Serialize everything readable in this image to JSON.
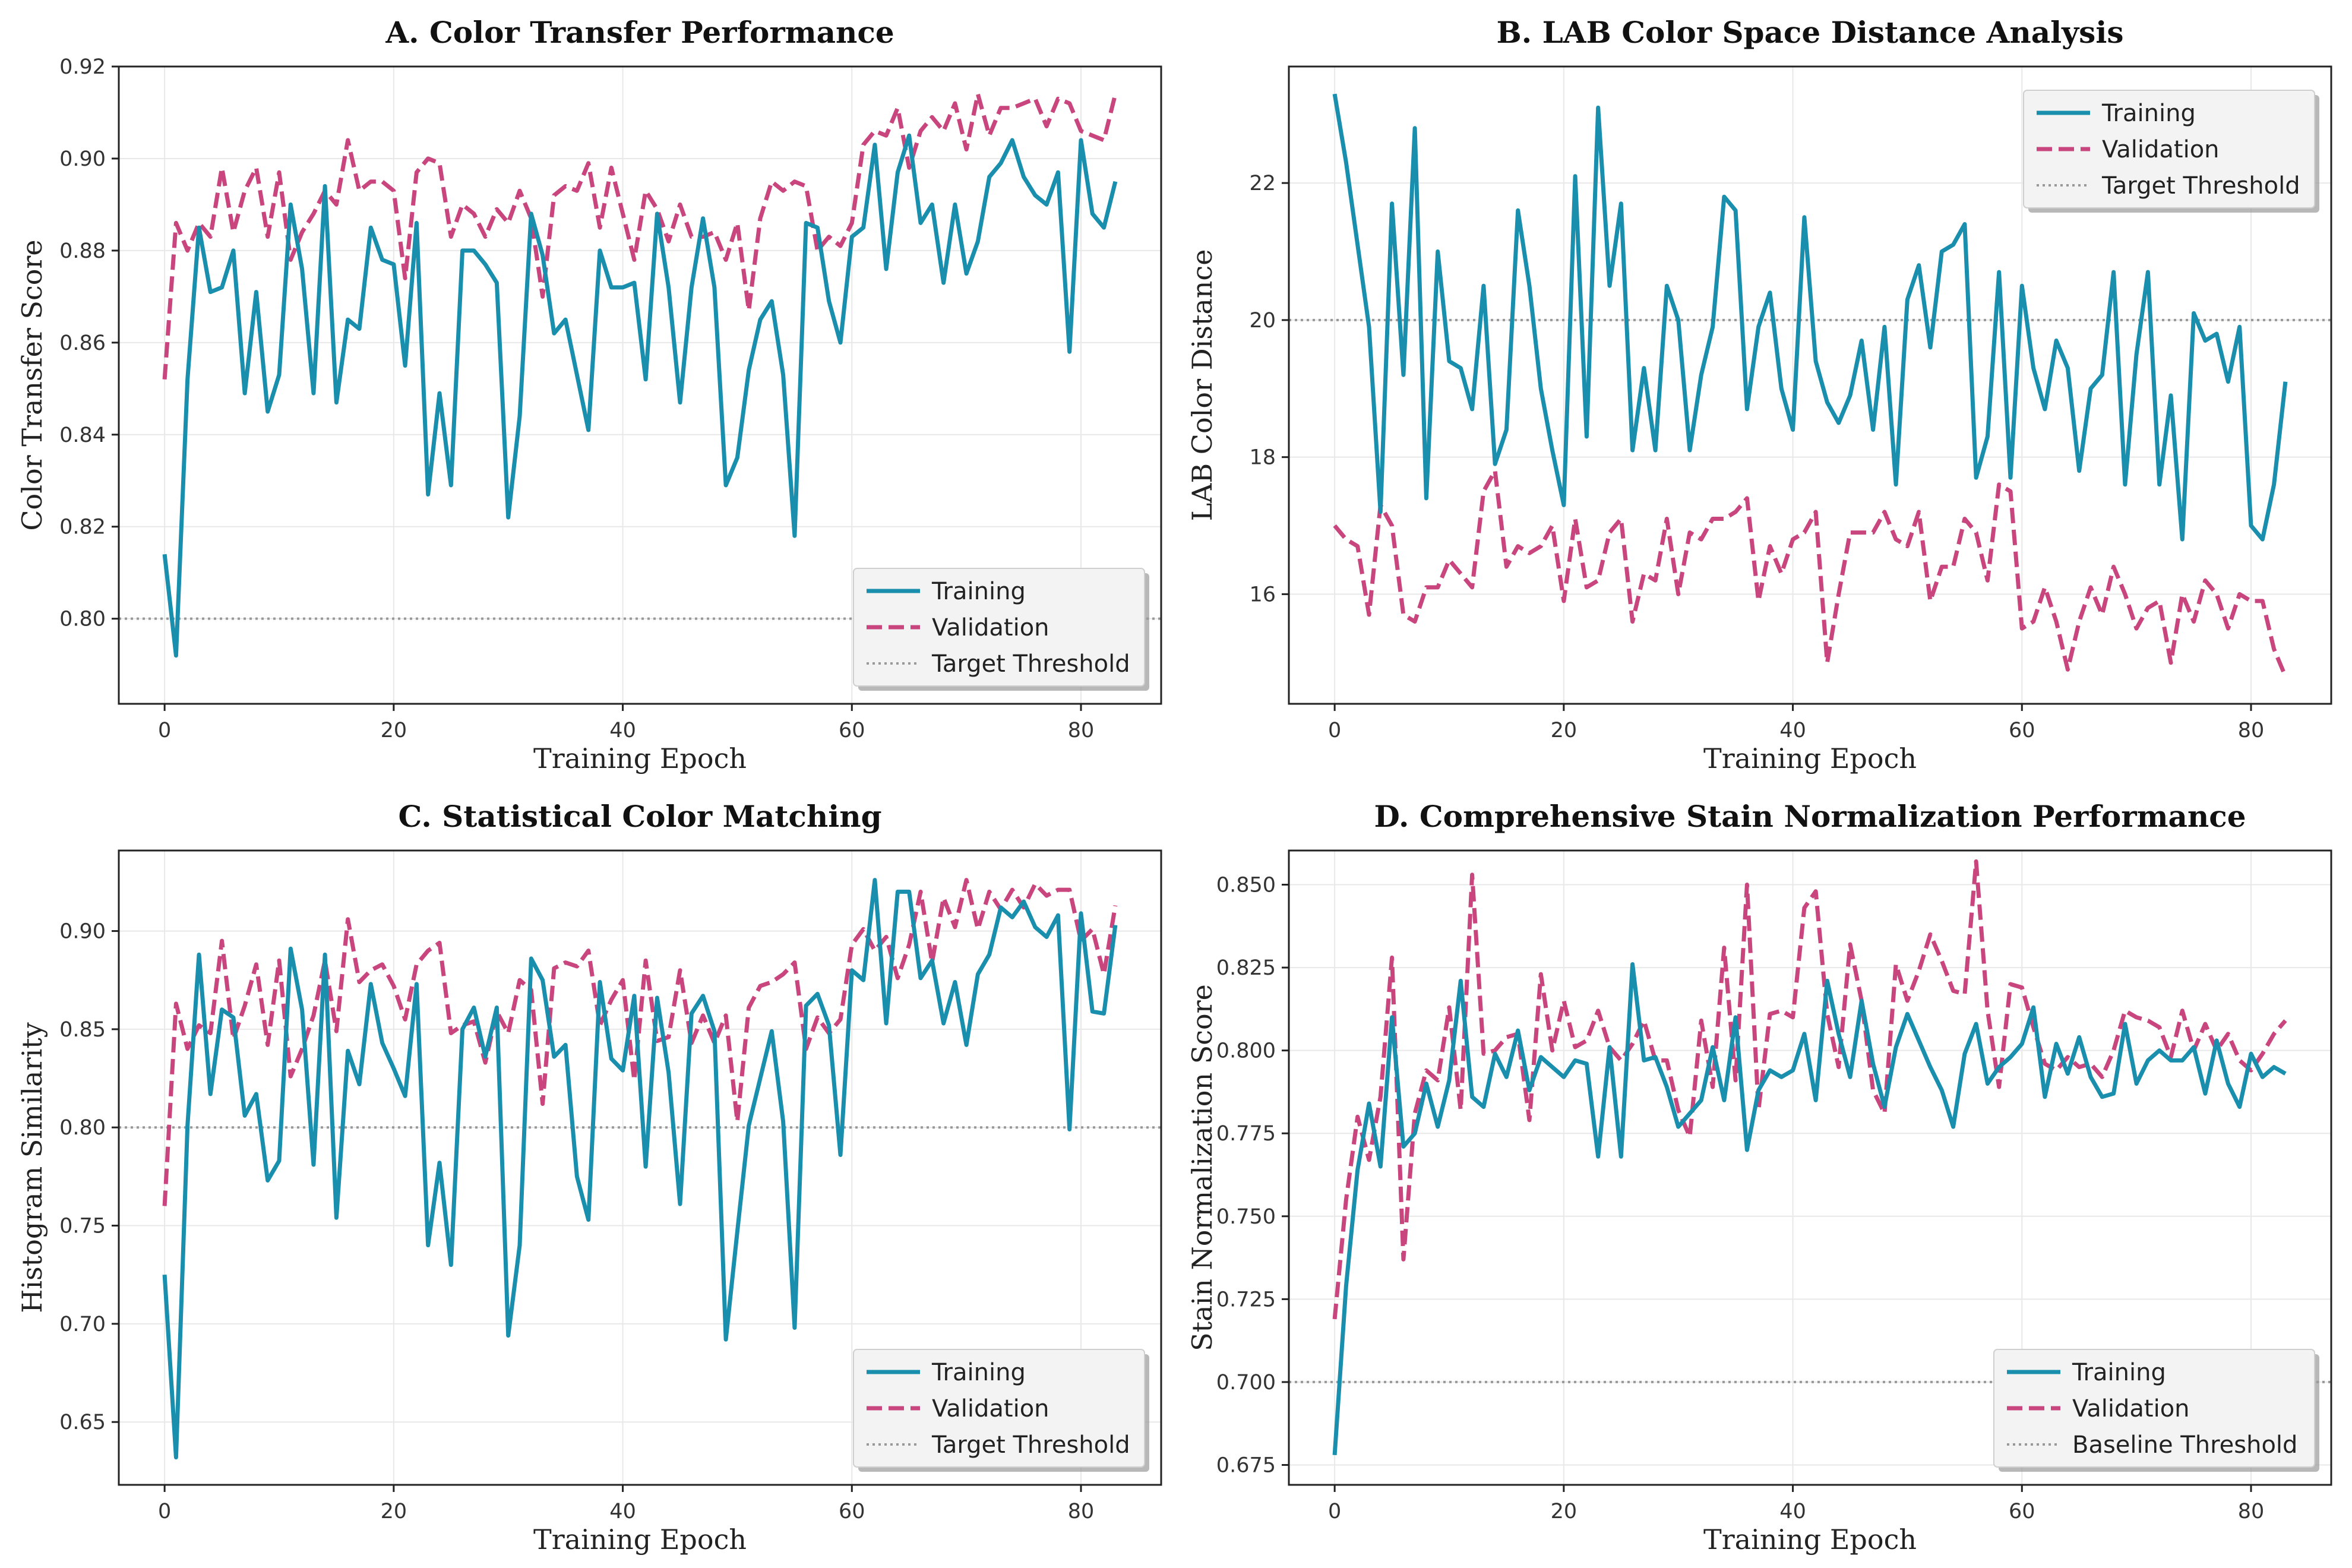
{
  "colors": {
    "training": "#1a8fad",
    "validation": "#c8457e",
    "threshold": "#999999",
    "grid": "#e8e8e8",
    "axis": "#222222"
  },
  "chart_data": [
    {
      "id": "A",
      "type": "line",
      "title": "A. Color Transfer Performance",
      "xlabel": "Training Epoch",
      "ylabel": "Color Transfer Score",
      "xlim": [
        -4,
        87
      ],
      "ylim": [
        0.7815,
        0.92
      ],
      "xticks": [
        0,
        20,
        40,
        60,
        80
      ],
      "xtick_labels": [
        "0",
        "20",
        "40",
        "60",
        "80"
      ],
      "yticks": [
        0.8,
        0.82,
        0.84,
        0.86,
        0.88,
        0.9,
        0.92
      ],
      "ytick_labels": [
        "0.80",
        "0.82",
        "0.84",
        "0.86",
        "0.88",
        "0.90",
        "0.92"
      ],
      "grid": true,
      "legend_position": "bottom-right",
      "threshold": {
        "name": "Target Threshold",
        "value": 0.8
      },
      "series": [
        {
          "name": "Training",
          "style": "solid",
          "values": [
            0.814,
            0.792,
            0.852,
            0.885,
            0.871,
            0.872,
            0.88,
            0.849,
            0.871,
            0.845,
            0.853,
            0.89,
            0.876,
            0.849,
            0.894,
            0.847,
            0.865,
            0.863,
            0.885,
            0.878,
            0.877,
            0.855,
            0.886,
            0.827,
            0.849,
            0.829,
            0.88,
            0.88,
            0.877,
            0.873,
            0.822,
            0.844,
            0.888,
            0.879,
            0.862,
            0.865,
            0.853,
            0.841,
            0.88,
            0.872,
            0.872,
            0.873,
            0.852,
            0.888,
            0.872,
            0.847,
            0.872,
            0.887,
            0.872,
            0.829,
            0.835,
            0.854,
            0.865,
            0.869,
            0.853,
            0.818,
            0.886,
            0.885,
            0.869,
            0.86,
            0.883,
            0.885,
            0.903,
            0.876,
            0.897,
            0.905,
            0.886,
            0.89,
            0.873,
            0.89,
            0.875,
            0.882,
            0.896,
            0.899,
            0.904,
            0.896,
            0.892,
            0.89,
            0.897,
            0.858,
            0.904,
            0.888,
            0.885,
            0.895
          ]
        },
        {
          "name": "Validation",
          "style": "dashed",
          "values": [
            0.852,
            0.886,
            0.88,
            0.886,
            0.883,
            0.898,
            0.884,
            0.893,
            0.898,
            0.883,
            0.897,
            0.878,
            0.884,
            0.888,
            0.893,
            0.89,
            0.904,
            0.893,
            0.895,
            0.895,
            0.893,
            0.874,
            0.897,
            0.9,
            0.899,
            0.883,
            0.89,
            0.888,
            0.883,
            0.889,
            0.886,
            0.893,
            0.887,
            0.87,
            0.892,
            0.894,
            0.893,
            0.899,
            0.885,
            0.898,
            0.888,
            0.878,
            0.893,
            0.889,
            0.882,
            0.89,
            0.883,
            0.883,
            0.884,
            0.878,
            0.886,
            0.867,
            0.887,
            0.895,
            0.893,
            0.895,
            0.894,
            0.88,
            0.883,
            0.881,
            0.886,
            0.903,
            0.906,
            0.905,
            0.911,
            0.898,
            0.906,
            0.909,
            0.906,
            0.912,
            0.902,
            0.914,
            0.905,
            0.911,
            0.911,
            0.912,
            0.913,
            0.907,
            0.913,
            0.912,
            0.906,
            0.905,
            0.904,
            0.914
          ]
        }
      ]
    },
    {
      "id": "B",
      "type": "line",
      "title": "B. LAB Color Space Distance Analysis",
      "xlabel": "Training Epoch",
      "ylabel": "LAB Color Distance",
      "xlim": [
        -4,
        87
      ],
      "ylim": [
        14.4,
        23.7
      ],
      "xticks": [
        0,
        20,
        40,
        60,
        80
      ],
      "xtick_labels": [
        "0",
        "20",
        "40",
        "60",
        "80"
      ],
      "yticks": [
        16,
        18,
        20,
        22
      ],
      "ytick_labels": [
        "16",
        "18",
        "20",
        "22"
      ],
      "grid": true,
      "legend_position": "top-right",
      "threshold": {
        "name": "Target Threshold",
        "value": 20
      },
      "series": [
        {
          "name": "Training",
          "style": "solid",
          "values": [
            23.3,
            22.3,
            21.1,
            19.9,
            17.2,
            21.7,
            19.2,
            22.8,
            17.4,
            21.0,
            19.4,
            19.3,
            18.7,
            20.5,
            17.9,
            18.4,
            21.6,
            20.5,
            19.0,
            18.1,
            17.3,
            22.1,
            18.3,
            23.1,
            20.5,
            21.7,
            18.1,
            19.3,
            18.1,
            20.5,
            20.0,
            18.1,
            19.2,
            19.9,
            21.8,
            21.6,
            18.7,
            19.9,
            20.4,
            19.0,
            18.4,
            21.5,
            19.4,
            18.8,
            18.5,
            18.9,
            19.7,
            18.4,
            19.9,
            17.6,
            20.3,
            20.8,
            19.6,
            21.0,
            21.1,
            21.4,
            17.7,
            18.3,
            20.7,
            17.7,
            20.5,
            19.3,
            18.7,
            19.7,
            19.3,
            17.8,
            19.0,
            19.2,
            20.7,
            17.6,
            19.5,
            20.7,
            17.6,
            18.9,
            16.8,
            20.1,
            19.7,
            19.8,
            19.1,
            19.9,
            17.0,
            16.8,
            17.6,
            19.1
          ]
        },
        {
          "name": "Validation",
          "style": "dashed",
          "values": [
            17.0,
            16.8,
            16.7,
            15.7,
            17.3,
            17.0,
            15.7,
            15.6,
            16.1,
            16.1,
            16.5,
            16.3,
            16.1,
            17.5,
            17.8,
            16.4,
            16.7,
            16.6,
            16.7,
            17.0,
            15.9,
            17.1,
            16.1,
            16.2,
            16.9,
            17.1,
            15.6,
            16.3,
            16.2,
            17.1,
            16.0,
            16.9,
            16.8,
            17.1,
            17.1,
            17.2,
            17.4,
            15.9,
            16.7,
            16.3,
            16.8,
            16.9,
            17.2,
            15.0,
            16.0,
            16.9,
            16.9,
            16.9,
            17.2,
            16.8,
            16.7,
            17.2,
            15.9,
            16.4,
            16.4,
            17.1,
            16.9,
            16.2,
            17.6,
            17.5,
            15.5,
            15.6,
            16.1,
            15.6,
            14.9,
            15.6,
            16.1,
            15.7,
            16.4,
            16.0,
            15.5,
            15.8,
            15.9,
            15.0,
            16.0,
            15.6,
            16.2,
            16.0,
            15.5,
            16.0,
            15.9,
            15.9,
            15.2,
            14.8
          ]
        }
      ]
    },
    {
      "id": "C",
      "type": "line",
      "title": "C. Statistical Color Matching",
      "xlabel": "Training Epoch",
      "ylabel": "Histogram Similarity",
      "xlim": [
        -4,
        87
      ],
      "ylim": [
        0.618,
        0.941
      ],
      "xticks": [
        0,
        20,
        40,
        60,
        80
      ],
      "xtick_labels": [
        "0",
        "20",
        "40",
        "60",
        "80"
      ],
      "yticks": [
        0.65,
        0.7,
        0.75,
        0.8,
        0.85,
        0.9
      ],
      "ytick_labels": [
        "0.65",
        "0.70",
        "0.75",
        "0.80",
        "0.85",
        "0.90"
      ],
      "grid": true,
      "legend_position": "bottom-right",
      "threshold": {
        "name": "Target Threshold",
        "value": 0.8
      },
      "series": [
        {
          "name": "Training",
          "style": "solid",
          "values": [
            0.725,
            0.632,
            0.801,
            0.888,
            0.817,
            0.86,
            0.856,
            0.806,
            0.817,
            0.773,
            0.783,
            0.891,
            0.86,
            0.781,
            0.888,
            0.754,
            0.839,
            0.822,
            0.873,
            0.843,
            0.83,
            0.816,
            0.873,
            0.74,
            0.782,
            0.73,
            0.85,
            0.861,
            0.836,
            0.861,
            0.694,
            0.74,
            0.886,
            0.875,
            0.836,
            0.842,
            0.775,
            0.753,
            0.874,
            0.835,
            0.829,
            0.867,
            0.78,
            0.866,
            0.828,
            0.761,
            0.858,
            0.867,
            0.849,
            0.692,
            0.747,
            0.801,
            0.825,
            0.849,
            0.803,
            0.698,
            0.862,
            0.868,
            0.852,
            0.786,
            0.88,
            0.875,
            0.926,
            0.853,
            0.92,
            0.92,
            0.876,
            0.885,
            0.853,
            0.874,
            0.842,
            0.878,
            0.888,
            0.912,
            0.907,
            0.915,
            0.902,
            0.897,
            0.908,
            0.799,
            0.909,
            0.859,
            0.858,
            0.903
          ]
        },
        {
          "name": "Validation",
          "style": "dashed",
          "values": [
            0.76,
            0.863,
            0.84,
            0.852,
            0.848,
            0.895,
            0.845,
            0.862,
            0.883,
            0.842,
            0.885,
            0.826,
            0.84,
            0.857,
            0.885,
            0.849,
            0.906,
            0.874,
            0.88,
            0.883,
            0.872,
            0.855,
            0.883,
            0.89,
            0.894,
            0.848,
            0.852,
            0.854,
            0.833,
            0.859,
            0.848,
            0.875,
            0.87,
            0.812,
            0.881,
            0.884,
            0.882,
            0.89,
            0.852,
            0.865,
            0.875,
            0.824,
            0.885,
            0.844,
            0.846,
            0.88,
            0.843,
            0.857,
            0.843,
            0.857,
            0.803,
            0.861,
            0.872,
            0.874,
            0.878,
            0.884,
            0.84,
            0.856,
            0.848,
            0.855,
            0.893,
            0.901,
            0.89,
            0.897,
            0.876,
            0.893,
            0.92,
            0.884,
            0.917,
            0.902,
            0.926,
            0.901,
            0.92,
            0.911,
            0.921,
            0.912,
            0.924,
            0.918,
            0.921,
            0.921,
            0.895,
            0.901,
            0.878,
            0.913
          ]
        }
      ]
    },
    {
      "id": "D",
      "type": "line",
      "title": "D. Comprehensive Stain Normalization Performance",
      "xlabel": "Training Epoch",
      "ylabel": "Stain Normalization Score",
      "xlim": [
        -4,
        87
      ],
      "ylim": [
        0.669,
        0.8603
      ],
      "xticks": [
        0,
        20,
        40,
        60,
        80
      ],
      "xtick_labels": [
        "0",
        "20",
        "40",
        "60",
        "80"
      ],
      "yticks": [
        0.675,
        0.7,
        0.725,
        0.75,
        0.775,
        0.8,
        0.825,
        0.85
      ],
      "ytick_labels": [
        "0.675",
        "0.700",
        "0.725",
        "0.750",
        "0.775",
        "0.800",
        "0.825",
        "0.850"
      ],
      "grid": true,
      "legend_position": "bottom-right",
      "threshold": {
        "name": "Baseline Threshold",
        "value": 0.7
      },
      "series": [
        {
          "name": "Training",
          "style": "solid",
          "values": [
            0.678,
            0.729,
            0.764,
            0.784,
            0.765,
            0.81,
            0.771,
            0.775,
            0.79,
            0.777,
            0.791,
            0.821,
            0.786,
            0.783,
            0.799,
            0.792,
            0.806,
            0.788,
            0.798,
            0.795,
            0.792,
            0.797,
            0.796,
            0.768,
            0.801,
            0.768,
            0.826,
            0.797,
            0.798,
            0.789,
            0.777,
            0.781,
            0.785,
            0.801,
            0.785,
            0.81,
            0.77,
            0.788,
            0.794,
            0.792,
            0.794,
            0.805,
            0.785,
            0.821,
            0.805,
            0.792,
            0.815,
            0.796,
            0.783,
            0.801,
            0.811,
            0.803,
            0.795,
            0.788,
            0.777,
            0.799,
            0.808,
            0.79,
            0.795,
            0.798,
            0.802,
            0.813,
            0.786,
            0.802,
            0.793,
            0.804,
            0.792,
            0.786,
            0.787,
            0.808,
            0.79,
            0.797,
            0.8,
            0.797,
            0.797,
            0.801,
            0.787,
            0.803,
            0.79,
            0.783,
            0.799,
            0.792,
            0.795,
            0.793
          ]
        },
        {
          "name": "Validation",
          "style": "dashed",
          "values": [
            0.719,
            0.755,
            0.78,
            0.767,
            0.786,
            0.828,
            0.737,
            0.781,
            0.794,
            0.791,
            0.813,
            0.782,
            0.853,
            0.799,
            0.8,
            0.804,
            0.805,
            0.779,
            0.823,
            0.8,
            0.815,
            0.801,
            0.803,
            0.812,
            0.801,
            0.797,
            0.802,
            0.809,
            0.797,
            0.797,
            0.782,
            0.774,
            0.809,
            0.789,
            0.831,
            0.791,
            0.85,
            0.782,
            0.811,
            0.812,
            0.81,
            0.843,
            0.848,
            0.811,
            0.795,
            0.832,
            0.815,
            0.788,
            0.781,
            0.826,
            0.815,
            0.824,
            0.835,
            0.827,
            0.818,
            0.817,
            0.857,
            0.812,
            0.789,
            0.82,
            0.819,
            0.807,
            0.796,
            0.794,
            0.798,
            0.795,
            0.796,
            0.792,
            0.8,
            0.812,
            0.81,
            0.809,
            0.807,
            0.798,
            0.812,
            0.8,
            0.808,
            0.8,
            0.805,
            0.797,
            0.794,
            0.799,
            0.805,
            0.809
          ]
        }
      ]
    }
  ]
}
